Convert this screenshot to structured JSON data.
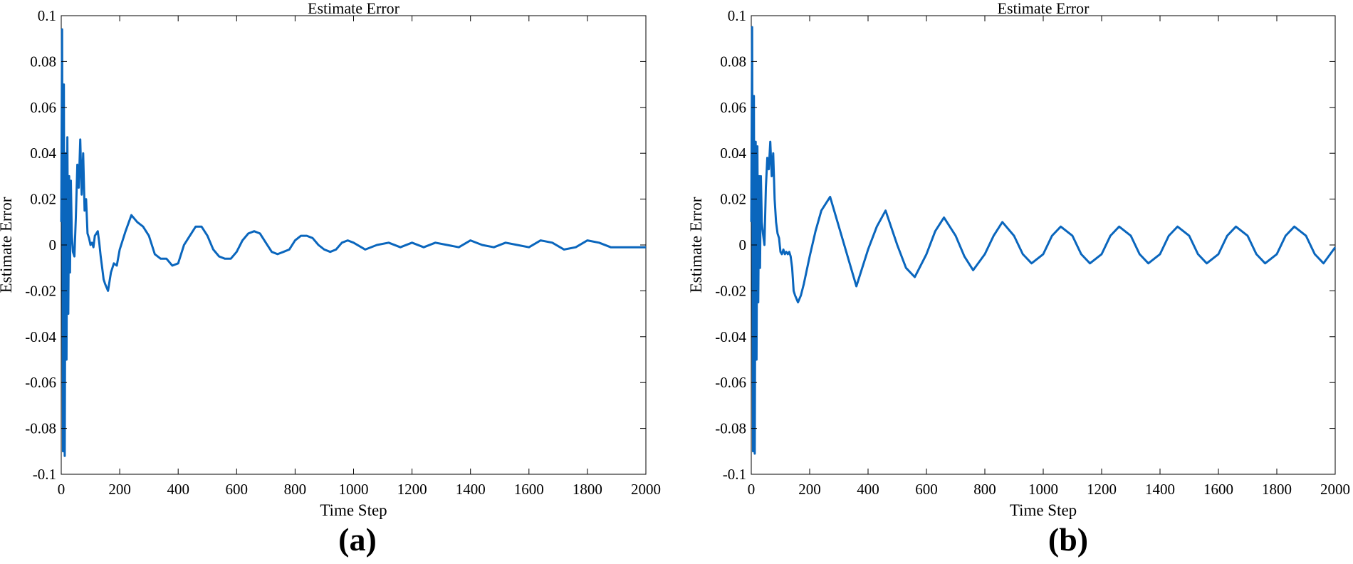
{
  "figure": {
    "captions": [
      "(a)",
      "(b)"
    ]
  },
  "chart_data": [
    {
      "type": "line",
      "title": "Estimate Error",
      "xlabel": "Time Step",
      "ylabel": "Estimate Error",
      "xlim": [
        0,
        2000
      ],
      "ylim": [
        -0.1,
        0.1
      ],
      "xticks": [
        0,
        200,
        400,
        600,
        800,
        1000,
        1200,
        1400,
        1600,
        1800,
        2000
      ],
      "yticks": [
        -0.1,
        -0.08,
        -0.06,
        -0.04,
        -0.02,
        0,
        0.02,
        0.04,
        0.06,
        0.08,
        0.1
      ],
      "ytick_labels": [
        "-0.1",
        "-0.08",
        "-0.06",
        "-0.04",
        "-0.02",
        "0",
        "0.02",
        "0.04",
        "0.06",
        "0.08",
        "0.1"
      ],
      "grid": false,
      "line_color": "#0a66bd",
      "series": [
        {
          "x": [
            0,
            3,
            6,
            9,
            12,
            15,
            18,
            21,
            24,
            27,
            30,
            33,
            36,
            40,
            45,
            50,
            55,
            60,
            65,
            70,
            75,
            80,
            85,
            90,
            95,
            100,
            105,
            110,
            115,
            120,
            125,
            130,
            135,
            140,
            145,
            150,
            160,
            170,
            180,
            190,
            200,
            220,
            240,
            260,
            280,
            300,
            320,
            340,
            360,
            380,
            400,
            420,
            440,
            460,
            480,
            500,
            520,
            540,
            560,
            580,
            600,
            620,
            640,
            660,
            680,
            700,
            720,
            740,
            760,
            780,
            800,
            820,
            840,
            860,
            880,
            900,
            920,
            940,
            960,
            980,
            1000,
            1040,
            1080,
            1120,
            1160,
            1200,
            1240,
            1280,
            1320,
            1360,
            1400,
            1440,
            1480,
            1520,
            1560,
            1600,
            1640,
            1680,
            1720,
            1760,
            1800,
            1840,
            1880,
            1920,
            1960,
            2000
          ],
          "y": [
            0.01,
            0.094,
            -0.09,
            0.07,
            -0.092,
            0.04,
            -0.05,
            0.047,
            -0.03,
            0.03,
            -0.012,
            0.028,
            0.005,
            -0.003,
            -0.005,
            0.012,
            0.035,
            0.025,
            0.046,
            0.022,
            0.04,
            0.015,
            0.02,
            0.005,
            0.003,
            0.0,
            0.001,
            -0.001,
            0.004,
            0.005,
            0.006,
            0.001,
            -0.005,
            -0.01,
            -0.015,
            -0.017,
            -0.02,
            -0.012,
            -0.008,
            -0.009,
            -0.002,
            0.006,
            0.013,
            0.01,
            0.008,
            0.004,
            -0.004,
            -0.006,
            -0.006,
            -0.009,
            -0.008,
            0.0,
            0.004,
            0.008,
            0.008,
            0.004,
            -0.002,
            -0.005,
            -0.006,
            -0.006,
            -0.003,
            0.002,
            0.005,
            0.006,
            0.005,
            0.001,
            -0.003,
            -0.004,
            -0.003,
            -0.002,
            0.002,
            0.004,
            0.004,
            0.003,
            0.0,
            -0.002,
            -0.003,
            -0.002,
            0.001,
            0.002,
            0.001,
            -0.002,
            0.0,
            0.001,
            -0.001,
            0.001,
            -0.001,
            0.001,
            0.0,
            -0.001,
            0.002,
            0.0,
            -0.001,
            0.001,
            0.0,
            -0.001,
            0.002,
            0.001,
            -0.002,
            -0.001,
            0.002,
            0.001,
            -0.001,
            -0.001,
            -0.001,
            -0.001
          ]
        }
      ]
    },
    {
      "type": "line",
      "title": "Estimate Error",
      "xlabel": "Time Step",
      "ylabel": "Estimate Error",
      "xlim": [
        0,
        2000
      ],
      "ylim": [
        -0.1,
        0.1
      ],
      "xticks": [
        0,
        200,
        400,
        600,
        800,
        1000,
        1200,
        1400,
        1600,
        1800,
        2000
      ],
      "yticks": [
        -0.1,
        -0.08,
        -0.06,
        -0.04,
        -0.02,
        0,
        0.02,
        0.04,
        0.06,
        0.08,
        0.1
      ],
      "ytick_labels": [
        "-0.1",
        "-0.08",
        "-0.06",
        "-0.04",
        "-0.02",
        "0",
        "0.02",
        "0.04",
        "0.06",
        "0.08",
        "0.1"
      ],
      "grid": false,
      "line_color": "#0a66bd",
      "series": [
        {
          "x": [
            0,
            3,
            6,
            9,
            12,
            15,
            18,
            21,
            24,
            27,
            30,
            33,
            36,
            40,
            45,
            50,
            55,
            60,
            65,
            70,
            75,
            80,
            85,
            90,
            95,
            100,
            105,
            110,
            115,
            120,
            125,
            130,
            135,
            140,
            145,
            150,
            160,
            170,
            180,
            200,
            220,
            240,
            270,
            300,
            330,
            360,
            400,
            430,
            460,
            500,
            530,
            560,
            600,
            630,
            660,
            700,
            730,
            760,
            800,
            830,
            860,
            900,
            930,
            960,
            1000,
            1030,
            1060,
            1100,
            1130,
            1160,
            1200,
            1230,
            1260,
            1300,
            1330,
            1360,
            1400,
            1430,
            1460,
            1500,
            1530,
            1560,
            1600,
            1630,
            1660,
            1700,
            1730,
            1760,
            1800,
            1830,
            1860,
            1900,
            1930,
            1960,
            2000
          ],
          "y": [
            0.01,
            0.095,
            -0.09,
            0.065,
            -0.091,
            0.045,
            -0.05,
            0.043,
            -0.025,
            0.03,
            -0.01,
            0.03,
            0.01,
            0.005,
            0.0,
            0.025,
            0.038,
            0.033,
            0.045,
            0.03,
            0.04,
            0.02,
            0.01,
            0.005,
            0.003,
            -0.003,
            -0.004,
            -0.002,
            -0.004,
            -0.003,
            -0.004,
            -0.003,
            -0.005,
            -0.01,
            -0.02,
            -0.022,
            -0.025,
            -0.022,
            -0.017,
            -0.005,
            0.006,
            0.015,
            0.021,
            0.008,
            -0.005,
            -0.018,
            -0.002,
            0.008,
            0.015,
            0.0,
            -0.01,
            -0.014,
            -0.004,
            0.006,
            0.012,
            0.004,
            -0.005,
            -0.011,
            -0.004,
            0.004,
            0.01,
            0.004,
            -0.004,
            -0.008,
            -0.004,
            0.004,
            0.008,
            0.004,
            -0.004,
            -0.008,
            -0.004,
            0.004,
            0.008,
            0.004,
            -0.004,
            -0.008,
            -0.004,
            0.004,
            0.008,
            0.004,
            -0.004,
            -0.008,
            -0.004,
            0.004,
            0.008,
            0.004,
            -0.004,
            -0.008,
            -0.004,
            0.004,
            0.008,
            0.004,
            -0.004,
            -0.008,
            -0.001
          ]
        }
      ]
    }
  ]
}
